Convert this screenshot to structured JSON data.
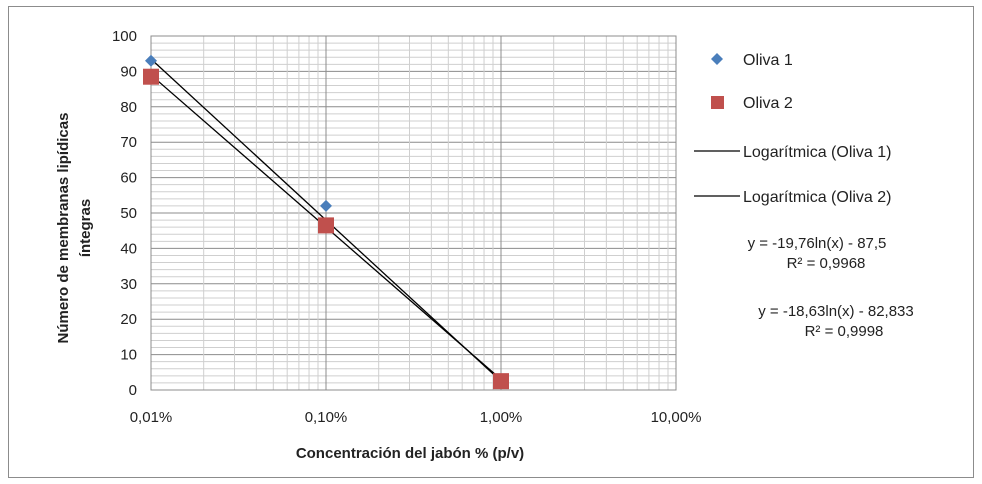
{
  "chart_data": {
    "type": "scatter",
    "x_scale": "log",
    "xlabel": "Concentración del jabón % (p/v)",
    "ylabel_lines": [
      "Número de membranas lipídicas",
      "íntegras"
    ],
    "xlim": [
      0.01,
      10
    ],
    "ylim": [
      0,
      100
    ],
    "x_ticks": [
      {
        "value": 0.01,
        "label": "0,01%"
      },
      {
        "value": 0.1,
        "label": "0,10%"
      },
      {
        "value": 1,
        "label": "1,00%"
      },
      {
        "value": 10,
        "label": "10,00%"
      }
    ],
    "y_ticks": [
      0,
      10,
      20,
      30,
      40,
      50,
      60,
      70,
      80,
      90,
      100
    ],
    "grid": true,
    "legend_position": "right",
    "series": [
      {
        "name": "Oliva 1",
        "marker": "diamond",
        "color": "#4a7ebb",
        "points": [
          {
            "x": 0.01,
            "y": 93
          },
          {
            "x": 0.1,
            "y": 52
          },
          {
            "x": 1,
            "y": 2
          }
        ]
      },
      {
        "name": "Oliva 2",
        "marker": "square",
        "color": "#c0504d",
        "points": [
          {
            "x": 0.01,
            "y": 88.5
          },
          {
            "x": 0.1,
            "y": 46.5
          },
          {
            "x": 1,
            "y": 2.5
          }
        ]
      }
    ],
    "trendlines": [
      {
        "name": "Logarítmica (Oliva 1)",
        "color": "#000000",
        "from": {
          "x": 0.01,
          "y": 93.5
        },
        "to": {
          "x": 1,
          "y": 2.5
        },
        "equation": "y = -19,76ln(x) - 87,5",
        "r2": "R² = 0,9968"
      },
      {
        "name": "Logarítmica (Oliva 2)",
        "color": "#000000",
        "from": {
          "x": 0.01,
          "y": 89
        },
        "to": {
          "x": 1,
          "y": 3
        },
        "equation": "y = -18,63ln(x) - 82,833",
        "r2": "R² = 0,9998"
      }
    ]
  }
}
